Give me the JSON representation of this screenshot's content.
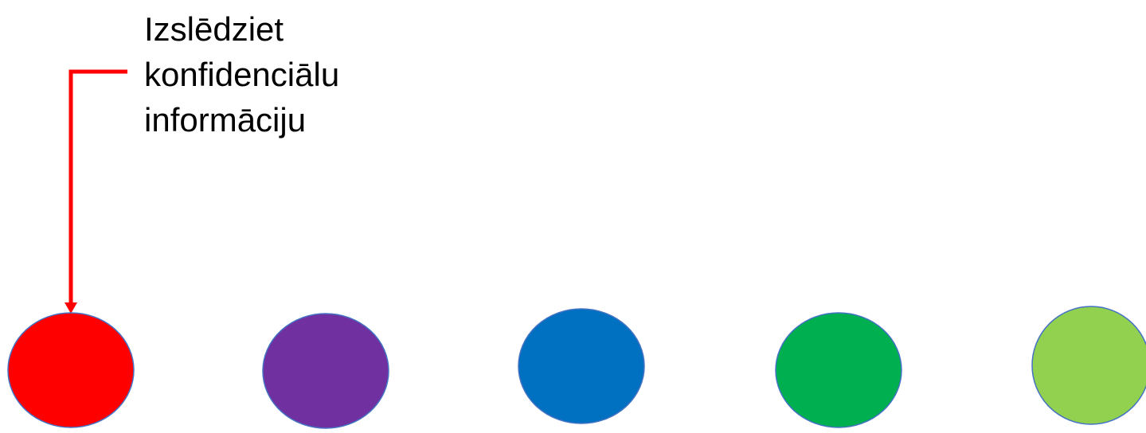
{
  "callout": {
    "lines": [
      "Izslēdziet",
      "konfidenciālu",
      "informāciju"
    ],
    "color": "#ff0000",
    "points_to": "red"
  },
  "circles": [
    {
      "name": "red",
      "fill": "#ff0000"
    },
    {
      "name": "purple",
      "fill": "#7030a0"
    },
    {
      "name": "blue",
      "fill": "#0070c0"
    },
    {
      "name": "green",
      "fill": "#00b050"
    },
    {
      "name": "light-green",
      "fill": "#92d050"
    }
  ],
  "circle_outline_color": "#4472c4"
}
